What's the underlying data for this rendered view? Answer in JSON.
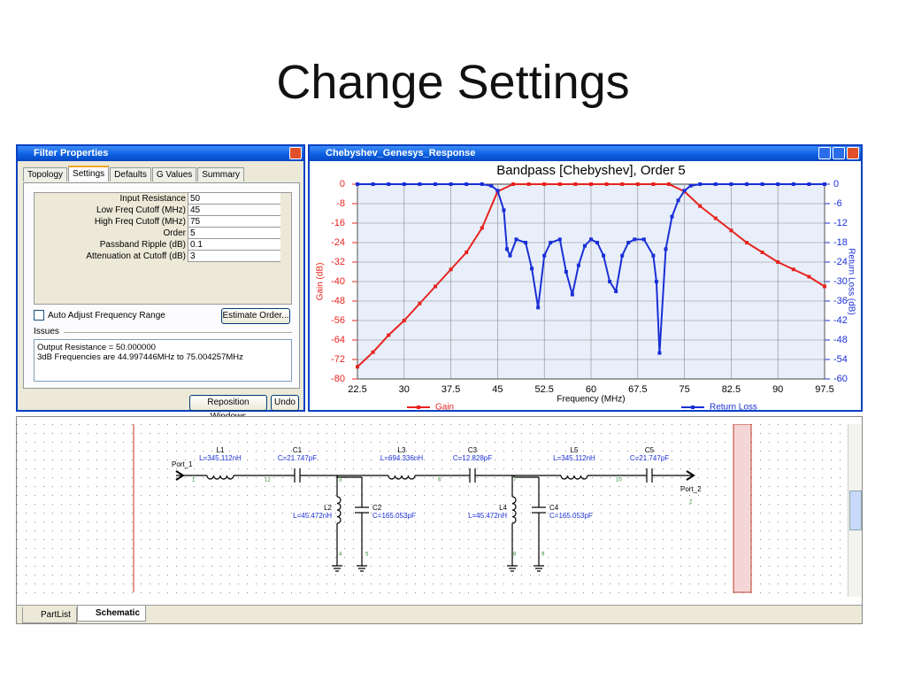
{
  "slide_title": "Change Settings",
  "filter_window": {
    "title": "Filter Properties",
    "tabs": [
      "Topology",
      "Settings",
      "Defaults",
      "G Values",
      "Summary"
    ],
    "params": [
      {
        "label": "Input Resistance",
        "value": 50
      },
      {
        "label": "Low Freq Cutoff (MHz)",
        "value": 45
      },
      {
        "label": "High Freq Cutoff (MHz)",
        "value": 75
      },
      {
        "label": "Order",
        "value": 5
      },
      {
        "label": "Passband Ripple (dB)",
        "value": 0.1
      },
      {
        "label": "Attenuation at Cutoff (dB)",
        "value": 3
      }
    ],
    "checkbox": "Auto Adjust Frequency Range",
    "estimate_button": "Estimate Order...",
    "issues_label": "Issues",
    "issues": [
      "Output Resistance = 50.000000",
      "3dB Frequencies are 44.997446MHz to 75.004257MHz"
    ],
    "buttons": [
      "Reposition Windows",
      "Undo"
    ]
  },
  "chart_window": {
    "title": "Chebyshev_Genesys_Response"
  },
  "chart_data": {
    "type": "line",
    "title": "Bandpass [Chebyshev], Order 5",
    "xlabel": "Frequency (MHz)",
    "ylabel": "Gain (dB)",
    "y2label": "Return Loss (dB)",
    "xlim": [
      22.5,
      97.5
    ],
    "xticks": [
      22.5,
      30,
      37.5,
      45,
      52.5,
      60,
      67.5,
      75,
      82.5,
      90,
      97.5
    ],
    "ylim": [
      -80,
      0
    ],
    "yticks": [
      0,
      -8,
      -16,
      -24,
      -32,
      -40,
      -48,
      -56,
      -64,
      -72,
      -80
    ],
    "y2lim": [
      -60,
      0
    ],
    "y2ticks": [
      0,
      -6,
      -12,
      -18,
      -24,
      -30,
      -36,
      -42,
      -48,
      -54,
      -60
    ],
    "grid": true,
    "legend": "bottom",
    "series": [
      {
        "name": "Gain",
        "color": "#e8231e",
        "x": [
          22.5,
          25,
          27.5,
          30,
          32.5,
          35,
          37.5,
          40,
          42.5,
          45,
          47.5,
          50,
          52.5,
          55,
          57.5,
          60,
          62.5,
          65,
          67.5,
          70,
          72.5,
          75,
          77.5,
          80,
          82.5,
          85,
          87.5,
          90,
          92.5,
          95,
          97.5
        ],
        "values": [
          -75,
          -69,
          -62,
          -56,
          -49,
          -42,
          -35,
          -28,
          -18,
          -3,
          0,
          0,
          0,
          0,
          0,
          0,
          0,
          0,
          0,
          0,
          0,
          -3,
          -9,
          -14,
          -19,
          -24,
          -28,
          -32,
          -35,
          -38,
          -42
        ]
      },
      {
        "name": "Return Loss",
        "color": "#1a2fd6",
        "axis": "y2",
        "x": [
          22.5,
          25,
          27.5,
          30,
          32.5,
          35,
          37.5,
          40,
          42.5,
          44,
          45,
          46,
          46.5,
          47,
          48,
          49.5,
          50.5,
          51.5,
          52.5,
          53.5,
          55,
          56,
          57,
          58,
          59,
          60,
          61,
          62,
          63,
          64,
          65,
          66,
          67,
          68.5,
          70,
          70.5,
          71,
          72,
          73,
          74,
          75,
          76,
          77.5,
          80,
          82.5,
          85,
          87.5,
          90,
          92.5,
          95,
          97.5
        ],
        "values": [
          0,
          0,
          0,
          0,
          0,
          0,
          0,
          0,
          0,
          -0.5,
          -2,
          -8,
          -20,
          -22,
          -17,
          -18,
          -26,
          -38,
          -22,
          -18,
          -17,
          -27,
          -34,
          -25,
          -19,
          -17,
          -18,
          -22,
          -30,
          -33,
          -22,
          -18,
          -17,
          -17,
          -22,
          -30,
          -52,
          -20,
          -10,
          -5,
          -2,
          -0.5,
          0,
          0,
          0,
          0,
          0,
          0,
          0,
          0,
          0
        ]
      }
    ]
  },
  "schematic": {
    "ports": [
      "Port_1",
      "Port_2"
    ],
    "components": [
      {
        "name": "L1",
        "value": "L=345.112nH"
      },
      {
        "name": "C1",
        "value": "C=21.747pF"
      },
      {
        "name": "L3",
        "value": "L=694.336nH"
      },
      {
        "name": "C3",
        "value": "C=12.828pF"
      },
      {
        "name": "L5",
        "value": "L=345.112nH"
      },
      {
        "name": "C5",
        "value": "C=21.747pF"
      },
      {
        "name": "L2",
        "value": "L=45.472nH"
      },
      {
        "name": "C2",
        "value": "C=165.053pF"
      },
      {
        "name": "L4",
        "value": "L=45.472nH"
      },
      {
        "name": "C4",
        "value": "C=165.053pF"
      }
    ],
    "nodes": [
      1,
      12,
      3,
      6,
      7,
      10,
      2,
      4,
      5,
      8,
      9
    ],
    "tabs": [
      "PartList",
      "Schematic"
    ]
  }
}
